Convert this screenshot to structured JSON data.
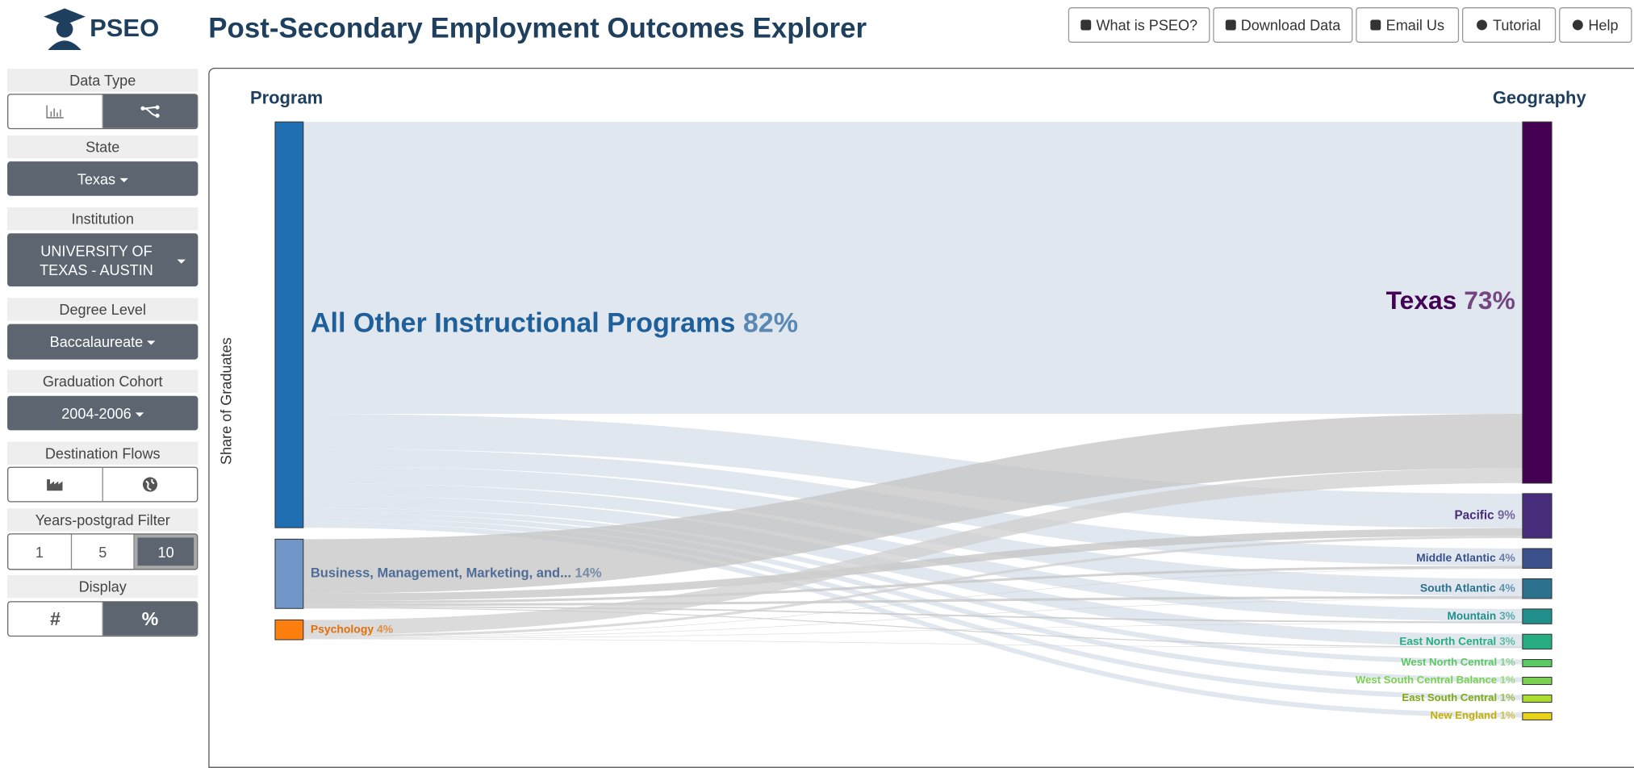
{
  "header": {
    "logo": "PSEO",
    "title": "Post-Secondary Employment Outcomes Explorer",
    "buttons": [
      "What is PSEO?",
      "Download Data",
      "Email Us",
      "Tutorial",
      "Help"
    ]
  },
  "sidebar": {
    "data_type": {
      "label": "Data Type"
    },
    "state": {
      "label": "State",
      "value": "Texas"
    },
    "institution": {
      "label": "Institution",
      "value": "UNIVERSITY OF TEXAS - AUSTIN"
    },
    "degree_level": {
      "label": "Degree Level",
      "value": "Baccalaureate"
    },
    "cohort": {
      "label": "Graduation Cohort",
      "value": "2004-2006"
    },
    "destination": {
      "label": "Destination Flows"
    },
    "years": {
      "label": "Years-postgrad Filter",
      "options": [
        "1",
        "5",
        "10"
      ]
    },
    "display": {
      "label": "Display",
      "options": [
        "#",
        "%"
      ]
    }
  },
  "sankey": {
    "left_title": "Program",
    "right_title": "Geography",
    "y_label": "Share of Graduates",
    "sources": [
      {
        "name": "All Other Instructional Programs",
        "value": 82,
        "value_label": "82%",
        "color": "#1f6fb2",
        "flow_color": "#d5dfea"
      },
      {
        "name": "Business, Management, Marketing, and...",
        "value": 14,
        "value_label": "14%",
        "color": "#7096c8",
        "flow_color": "#c4c4c4"
      },
      {
        "name": "Psychology",
        "value": 4,
        "value_label": "4%",
        "color": "#ff7f0e",
        "flow_color": "#cfcfcf"
      }
    ],
    "targets": [
      {
        "name": "Texas",
        "value": 73,
        "value_label": "73%",
        "color": "#440154"
      },
      {
        "name": "Pacific",
        "value": 9,
        "value_label": "9%",
        "color": "#472d7b"
      },
      {
        "name": "Middle Atlantic",
        "value": 4,
        "value_label": "4%",
        "color": "#3b518b"
      },
      {
        "name": "South Atlantic",
        "value": 4,
        "value_label": "4%",
        "color": "#2c718e"
      },
      {
        "name": "Mountain",
        "value": 3,
        "value_label": "3%",
        "color": "#21908d"
      },
      {
        "name": "East North Central",
        "value": 3,
        "value_label": "3%",
        "color": "#27ad81"
      },
      {
        "name": "West North Central",
        "value": 1,
        "value_label": "1%",
        "color": "#5cc863"
      },
      {
        "name": "West South Central Balance",
        "value": 1,
        "value_label": "1%",
        "color": "#7ad151"
      },
      {
        "name": "East South Central",
        "value": 1,
        "value_label": "1%",
        "color": "#aadc32"
      },
      {
        "name": "New England",
        "value": 1,
        "value_label": "1%",
        "color": "#e8d31a"
      }
    ],
    "flows": [
      {
        "source": 0,
        "target": 0,
        "value": 59
      },
      {
        "source": 0,
        "target": 1,
        "value": 7
      },
      {
        "source": 0,
        "target": 2,
        "value": 3.5
      },
      {
        "source": 0,
        "target": 3,
        "value": 3.5
      },
      {
        "source": 0,
        "target": 4,
        "value": 2.5
      },
      {
        "source": 0,
        "target": 5,
        "value": 2.5
      },
      {
        "source": 0,
        "target": 6,
        "value": 1
      },
      {
        "source": 0,
        "target": 7,
        "value": 1
      },
      {
        "source": 0,
        "target": 8,
        "value": 1
      },
      {
        "source": 0,
        "target": 9,
        "value": 1
      },
      {
        "source": 1,
        "target": 0,
        "value": 11
      },
      {
        "source": 1,
        "target": 1,
        "value": 1.5
      },
      {
        "source": 1,
        "target": 2,
        "value": 0.5
      },
      {
        "source": 1,
        "target": 3,
        "value": 0.5
      },
      {
        "source": 1,
        "target": 4,
        "value": 0.3
      },
      {
        "source": 1,
        "target": 5,
        "value": 0.2
      },
      {
        "source": 2,
        "target": 0,
        "value": 3
      },
      {
        "source": 2,
        "target": 1,
        "value": 0.5
      },
      {
        "source": 2,
        "target": 2,
        "value": 0.1
      },
      {
        "source": 2,
        "target": 3,
        "value": 0.1
      },
      {
        "source": 2,
        "target": 4,
        "value": 0.1
      },
      {
        "source": 2,
        "target": 5,
        "value": 0.1
      }
    ]
  }
}
